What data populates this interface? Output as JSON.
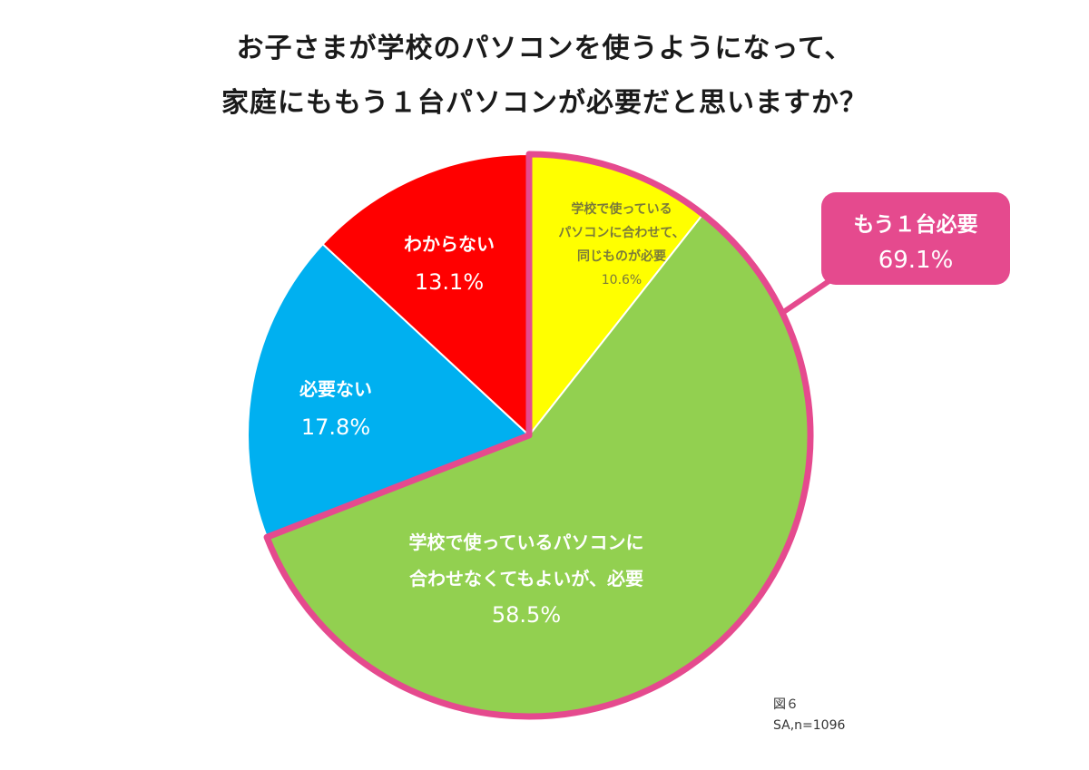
{
  "title": {
    "line1": "お子さまが学校のパソコンを使うようになって、",
    "line2": "家庭にももう１台パソコンが必要だと思いますか？"
  },
  "chart_data": {
    "type": "pie",
    "slices": [
      {
        "label_lines": [
          "学校で使っている",
          "パソコンに合わせて、",
          "同じものが必要"
        ],
        "value_text": "10.6%",
        "value": 10.6,
        "color": "#ffff00"
      },
      {
        "label_lines": [
          "学校で使っているパソコンに",
          "合わせなくてもよいが、必要"
        ],
        "value_text": "58.5%",
        "value": 58.5,
        "color": "#92d050"
      },
      {
        "label_lines": [
          "必要ない"
        ],
        "value_text": "17.8%",
        "value": 17.8,
        "color": "#00b0f0"
      },
      {
        "label_lines": [
          "わからない"
        ],
        "value_text": "13.1%",
        "value": 13.1,
        "color": "#ff0000"
      }
    ],
    "highlight": {
      "label": "もう１台必要",
      "value_text": "69.1%",
      "value": 69.1,
      "color": "#e54a8e"
    },
    "start": "top",
    "direction": "clockwise"
  },
  "notes": {
    "figure": "図６",
    "sample": "SA,n=1096"
  }
}
